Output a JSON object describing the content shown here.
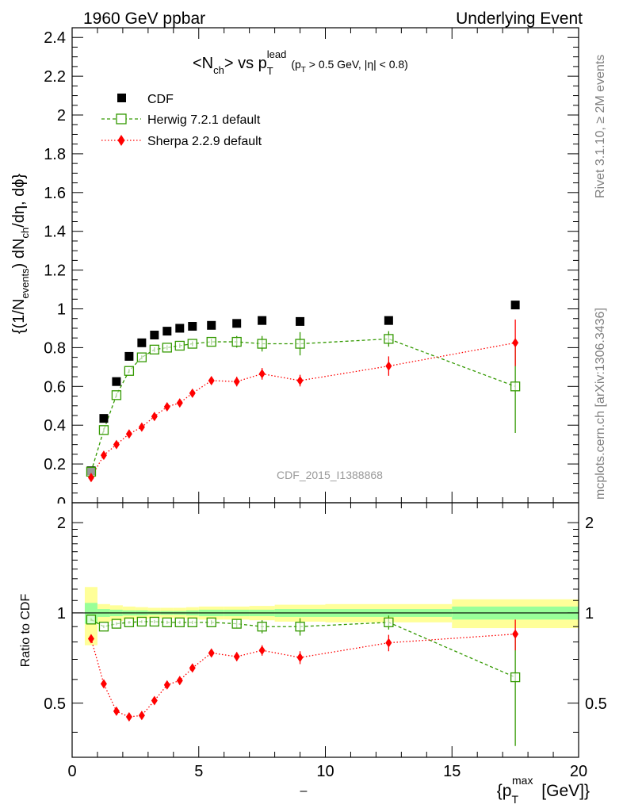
{
  "header": {
    "left": "1960 GeV ppbar",
    "right": "Underlying Event"
  },
  "side": {
    "rivet": "Rivet 3.1.10, ≥ 2M events",
    "mcplots": "mcplots.cern.ch [arXiv:1306.3436]"
  },
  "watermark": "CDF_2015_I1388868",
  "chart_data": [
    {
      "type": "scatter",
      "title": "<N_ch> vs p_T^lead (p_T > 0.5 GeV, |η| < 0.8)",
      "ylabel": "{(1/N_events) dN_ch/dη, dϕ}",
      "xlabel": "",
      "xlim": [
        0,
        20
      ],
      "ylim": [
        0,
        2.45
      ],
      "y_ticks": [
        "0.2",
        "0.4",
        "0.6",
        "0.8",
        "1",
        "1.2",
        "1.4",
        "1.6",
        "1.8",
        "2",
        "2.2",
        "2.4"
      ],
      "legend": "top-left",
      "colors": {
        "cdf": "#000000",
        "herwig": "#339900",
        "sherpa": "#ff0000"
      },
      "series": [
        {
          "name": "CDF",
          "x": [
            0.75,
            1.25,
            1.75,
            2.25,
            2.75,
            3.25,
            3.75,
            4.25,
            4.75,
            5.5,
            6.5,
            7.5,
            9.0,
            12.5,
            17.5
          ],
          "y": [
            0.165,
            0.435,
            0.625,
            0.755,
            0.825,
            0.865,
            0.885,
            0.9,
            0.91,
            0.915,
            0.925,
            0.94,
            0.935,
            0.94,
            1.02
          ]
        },
        {
          "name": "Herwig 7.2.1 default",
          "x": [
            0.75,
            1.25,
            1.75,
            2.25,
            2.75,
            3.25,
            3.75,
            4.25,
            4.75,
            5.5,
            6.5,
            7.5,
            9.0,
            12.5,
            17.5
          ],
          "y": [
            0.16,
            0.375,
            0.555,
            0.68,
            0.75,
            0.79,
            0.8,
            0.81,
            0.82,
            0.83,
            0.83,
            0.82,
            0.82,
            0.845,
            0.6
          ],
          "err": [
            0.01,
            0.01,
            0.01,
            0.01,
            0.01,
            0.012,
            0.012,
            0.012,
            0.012,
            0.015,
            0.03,
            0.04,
            0.06,
            0.04,
            0.24
          ]
        },
        {
          "name": "Sherpa 2.2.9 default",
          "x": [
            0.75,
            1.25,
            1.75,
            2.25,
            2.75,
            3.25,
            3.75,
            4.25,
            4.75,
            5.5,
            6.5,
            7.5,
            9.0,
            12.5,
            17.5
          ],
          "y": [
            0.13,
            0.245,
            0.3,
            0.355,
            0.39,
            0.445,
            0.495,
            0.515,
            0.565,
            0.63,
            0.625,
            0.665,
            0.63,
            0.705,
            0.825
          ],
          "err": [
            0.01,
            0.01,
            0.01,
            0.01,
            0.01,
            0.012,
            0.012,
            0.012,
            0.015,
            0.02,
            0.025,
            0.03,
            0.03,
            0.05,
            0.12
          ]
        }
      ]
    },
    {
      "type": "scatter",
      "title": "",
      "ylabel": "Ratio to CDF",
      "xlabel": "{p_T^max [GeV]}",
      "x_axis_mark": "–",
      "xlim": [
        0,
        20
      ],
      "ylim": [
        0.33,
        2.33
      ],
      "y_ticks": [
        "0.5",
        "1",
        "2"
      ],
      "x_ticks": [
        "0",
        "5",
        "10",
        "15",
        "20"
      ],
      "reference_line": 1,
      "bands": {
        "x_edges": [
          0.5,
          1.0,
          1.5,
          2.0,
          2.5,
          3.0,
          3.5,
          4.0,
          4.5,
          5.0,
          6.0,
          7.0,
          8.0,
          10.0,
          15.0,
          20.0
        ],
        "stat": [
          0.08,
          0.03,
          0.025,
          0.02,
          0.02,
          0.015,
          0.015,
          0.015,
          0.02,
          0.025,
          0.025,
          0.025,
          0.03,
          0.03,
          0.05
        ],
        "total": [
          0.22,
          0.07,
          0.06,
          0.05,
          0.045,
          0.04,
          0.04,
          0.04,
          0.045,
          0.05,
          0.05,
          0.055,
          0.065,
          0.07,
          0.11
        ]
      },
      "series": [
        {
          "name": "Herwig 7.2.1 default",
          "x": [
            0.75,
            1.25,
            1.75,
            2.25,
            2.75,
            3.25,
            3.75,
            4.25,
            4.75,
            5.5,
            6.5,
            7.5,
            9.0,
            12.5,
            17.5
          ],
          "y": [
            0.95,
            0.9,
            0.92,
            0.93,
            0.935,
            0.935,
            0.93,
            0.93,
            0.93,
            0.93,
            0.92,
            0.9,
            0.9,
            0.93,
            0.61
          ],
          "err": [
            0.01,
            0.01,
            0.01,
            0.01,
            0.01,
            0.012,
            0.012,
            0.012,
            0.012,
            0.015,
            0.03,
            0.045,
            0.06,
            0.05,
            0.25
          ]
        },
        {
          "name": "Sherpa 2.2.9 default",
          "x": [
            0.75,
            1.25,
            1.75,
            2.25,
            2.75,
            3.25,
            3.75,
            4.25,
            4.75,
            5.5,
            6.5,
            7.5,
            9.0,
            12.5,
            17.5
          ],
          "y": [
            0.82,
            0.58,
            0.47,
            0.45,
            0.455,
            0.51,
            0.575,
            0.595,
            0.655,
            0.735,
            0.715,
            0.75,
            0.71,
            0.795,
            0.85
          ],
          "err": [
            0.01,
            0.012,
            0.012,
            0.01,
            0.01,
            0.012,
            0.012,
            0.012,
            0.015,
            0.02,
            0.025,
            0.03,
            0.035,
            0.05,
            0.1
          ]
        }
      ]
    }
  ]
}
